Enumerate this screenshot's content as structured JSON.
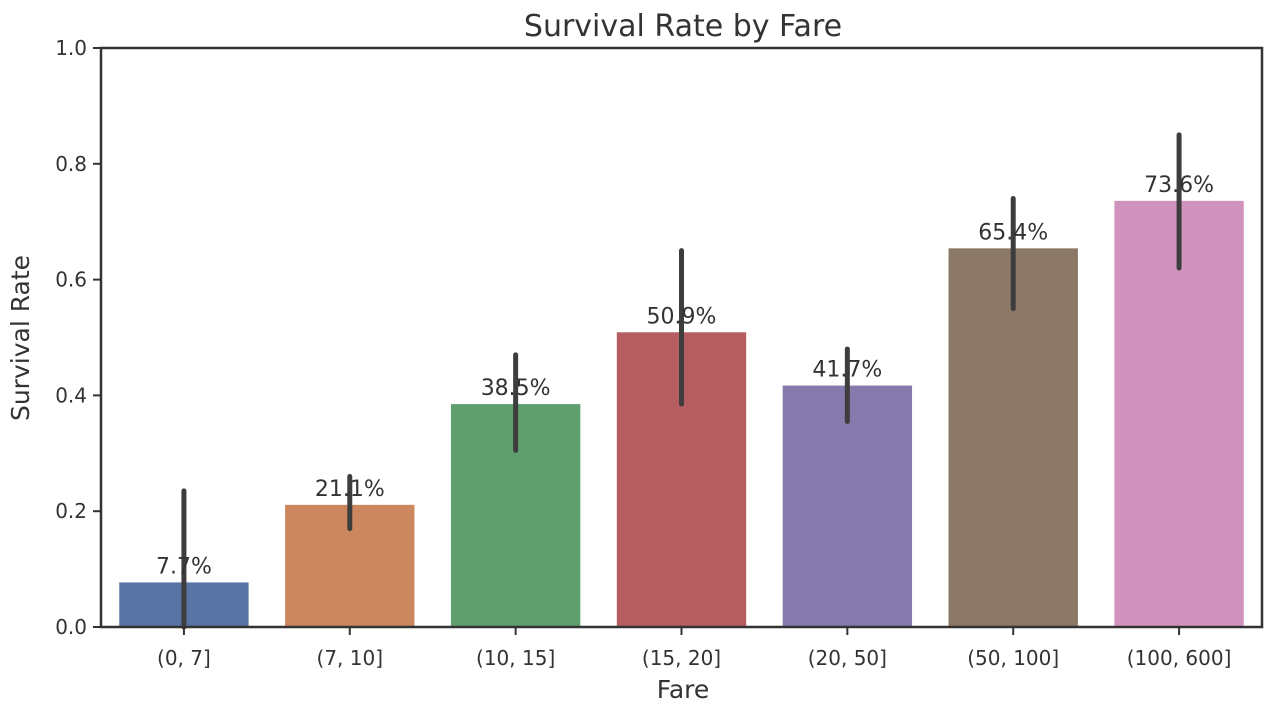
{
  "chart_data": {
    "type": "bar",
    "title": "Survival Rate by Fare",
    "xlabel": "Fare",
    "ylabel": "Survival Rate",
    "categories": [
      "(0, 7]",
      "(7, 10]",
      "(10, 15]",
      "(15, 20]",
      "(20, 50]",
      "(50, 100]",
      "(100, 600]"
    ],
    "values": [
      0.077,
      0.211,
      0.385,
      0.509,
      0.417,
      0.654,
      0.736
    ],
    "value_labels": [
      "7.7%",
      "21.1%",
      "38.5%",
      "50.9%",
      "41.7%",
      "65.4%",
      "73.6%"
    ],
    "error_bars": [
      [
        0.0,
        0.235
      ],
      [
        0.17,
        0.26
      ],
      [
        0.305,
        0.47
      ],
      [
        0.385,
        0.65
      ],
      [
        0.355,
        0.48
      ],
      [
        0.55,
        0.74
      ],
      [
        0.62,
        0.85
      ]
    ],
    "colors": [
      "#5874a6",
      "#cd875f",
      "#5f9e6e",
      "#b55d60",
      "#857aab",
      "#8c7866",
      "#d093bd"
    ],
    "ylim": [
      0,
      1.0
    ],
    "yticks": [
      "0.0",
      "0.2",
      "0.4",
      "0.6",
      "0.8",
      "1.0"
    ],
    "grid": false,
    "legend": "none"
  }
}
